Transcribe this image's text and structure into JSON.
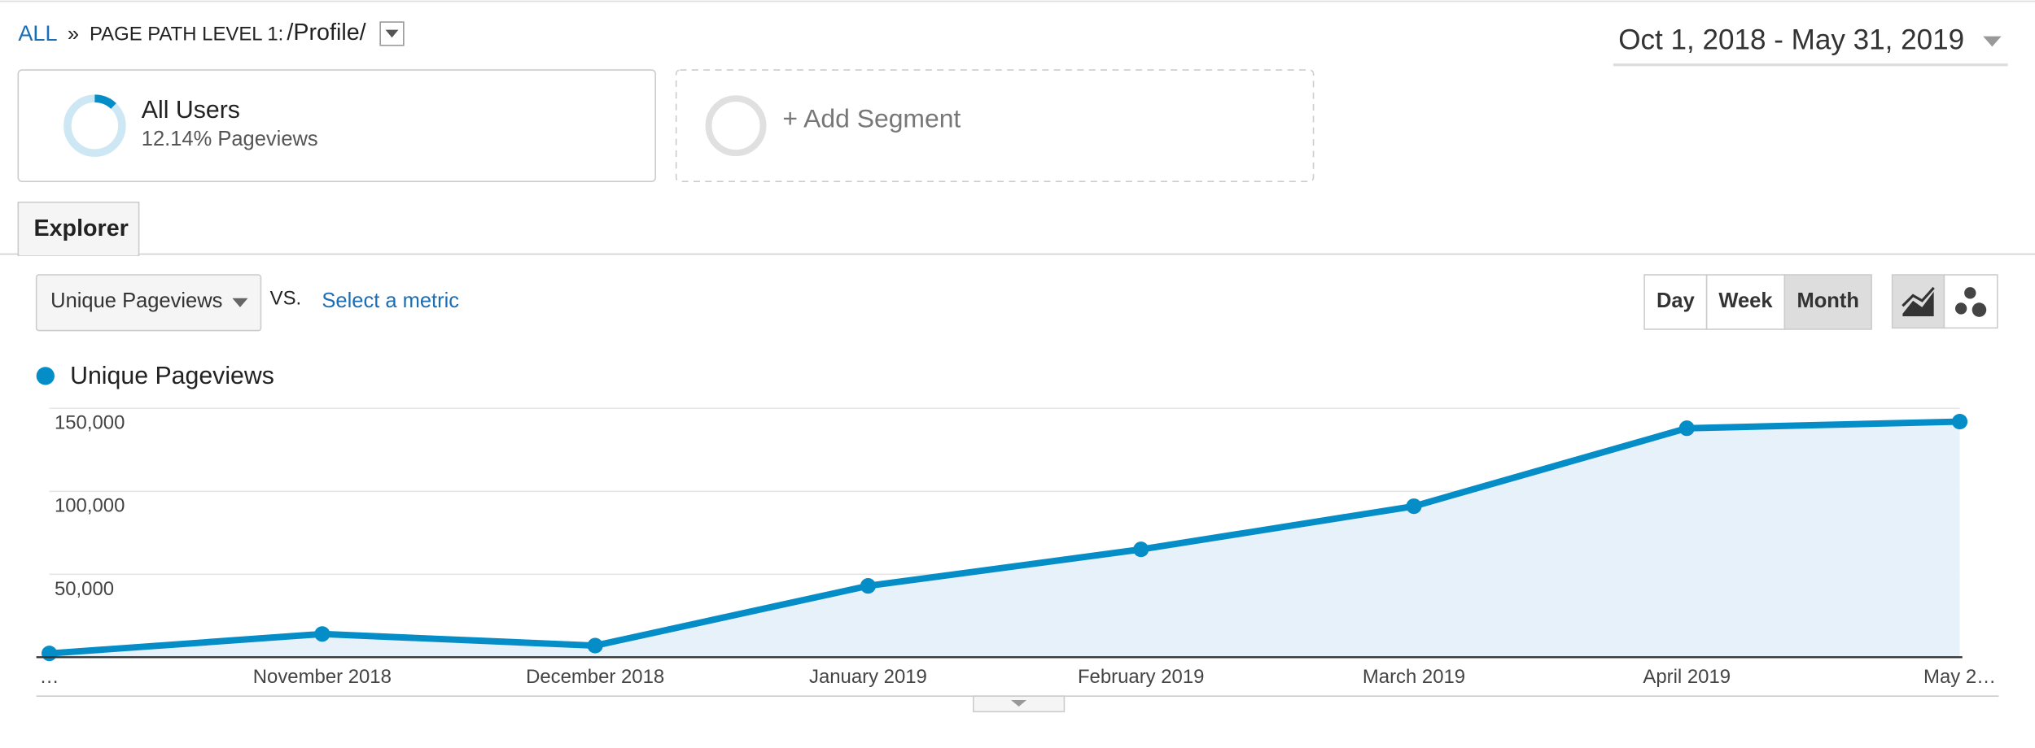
{
  "breadcrumb": {
    "root": "ALL",
    "separator": "»",
    "dimension": "PAGE PATH LEVEL 1:",
    "value": "/Profile/"
  },
  "date_range": "Oct 1, 2018 - May 31, 2019",
  "segments": [
    {
      "name": "All Users",
      "share": 12.14,
      "share_label": "12.14% Pageviews"
    }
  ],
  "add_segment": "+ Add Segment",
  "tab": "Explorer",
  "controls": {
    "metric": "Unique Pageviews",
    "vs": "VS.",
    "select_metric": "Select a metric",
    "periods": [
      "Day",
      "Week",
      "Month"
    ],
    "active_period": "Month"
  },
  "chart_data": {
    "type": "line",
    "categories": [
      "…",
      "November 2018",
      "December 2018",
      "January 2019",
      "February 2019",
      "March 2019",
      "April 2019",
      "May 2…"
    ],
    "series": [
      {
        "name": "Unique Pageviews",
        "color": "#058dc7",
        "values": [
          2300,
          14000,
          7000,
          43000,
          65000,
          91000,
          138000,
          142000
        ]
      }
    ],
    "ylim": [
      0,
      150000
    ],
    "yticks": [
      {
        "value": 50000,
        "label": "50,000"
      },
      {
        "value": 100000,
        "label": "100,000"
      },
      {
        "value": 150000,
        "label": "150,000"
      }
    ],
    "grid": true,
    "area": true
  }
}
